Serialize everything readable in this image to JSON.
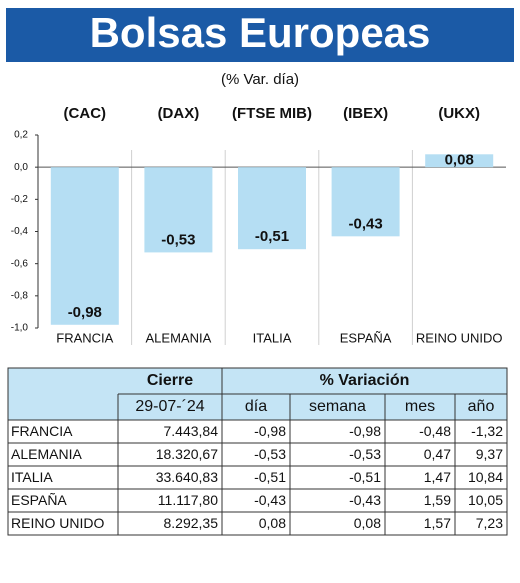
{
  "chart_data": {
    "type": "bar",
    "title": "Bolsas Europeas",
    "subtitle": "(% Var. día)",
    "indices": [
      "(CAC)",
      "(DAX)",
      "(FTSE MIB)",
      "(IBEX)",
      "(UKX)"
    ],
    "categories": [
      "FRANCIA",
      "ALEMANIA",
      "ITALIA",
      "ESPAÑA",
      "REINO UNIDO"
    ],
    "values": [
      -0.98,
      -0.53,
      -0.51,
      -0.43,
      0.08
    ],
    "value_labels": [
      "-0,98",
      "-0,53",
      "-0,51",
      "-0,43",
      "0,08"
    ],
    "color": "#b5def3",
    "ylim": [
      -1.0,
      0.2
    ],
    "yticks": [
      {
        "value": 0.2,
        "label": "0,2"
      },
      {
        "value": 0.0,
        "label": "0,0"
      },
      {
        "value": -0.2,
        "label": "-0,2"
      },
      {
        "value": -0.4,
        "label": "-0,4"
      },
      {
        "value": -0.6,
        "label": "-0,6"
      },
      {
        "value": -0.8,
        "label": "-0,8"
      },
      {
        "value": -1.0,
        "label": "-1,0"
      }
    ]
  },
  "table": {
    "header": [
      "Cierre",
      "% Variación"
    ],
    "subheader": [
      "29-07-´24",
      "día",
      "semana",
      "mes",
      "año"
    ],
    "rows": [
      [
        "FRANCIA",
        "7.443,84",
        "-0,98",
        "-0,98",
        "-0,48",
        "-1,32"
      ],
      [
        "ALEMANIA",
        "18.320,67",
        "-0,53",
        "-0,53",
        "0,47",
        "9,37"
      ],
      [
        "ITALIA",
        "33.640,83",
        "-0,51",
        "-0,51",
        "1,47",
        "10,84"
      ],
      [
        "ESPAÑA",
        "11.117,80",
        "-0,43",
        "-0,43",
        "1,59",
        "10,05"
      ],
      [
        "REINO UNIDO",
        "8.292,35",
        "0,08",
        "0,08",
        "1,57",
        "7,23"
      ]
    ]
  }
}
